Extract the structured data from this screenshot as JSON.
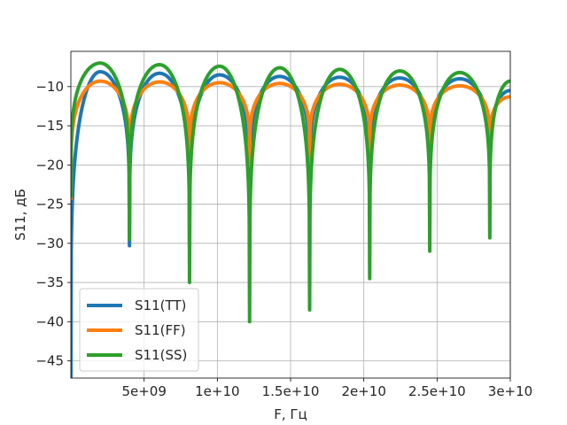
{
  "chart_data": {
    "type": "line",
    "title": "",
    "xlabel": "F, Гц",
    "ylabel": "S11, дБ",
    "xlim": [
      0,
      30000000000
    ],
    "ylim": [
      -47.2,
      -5.5
    ],
    "grid": true,
    "legend_position": "lower-left",
    "x_ticks": [
      5000000000,
      10000000000,
      15000000000,
      20000000000,
      25000000000,
      30000000000
    ],
    "x_tick_labels": [
      "5e+09",
      "1e+10",
      "1.5e+10",
      "2e+10",
      "2.5e+10",
      "3e+10"
    ],
    "y_ticks": [
      -10,
      -15,
      -20,
      -25,
      -30,
      -35,
      -40,
      -45
    ],
    "y_tick_labels": [
      "−10",
      "−15",
      "−20",
      "−25",
      "−30",
      "−35",
      "−40",
      "−45"
    ],
    "series": [
      {
        "name": "S11(TT)",
        "color": "#1f77b4",
        "peaks": [
          {
            "x": 2000000000,
            "y": -8.1
          },
          {
            "x": 6050000000,
            "y": -8.3
          },
          {
            "x": 10150000000,
            "y": -8.5
          },
          {
            "x": 14250000000,
            "y": -8.7
          },
          {
            "x": 18350000000,
            "y": -8.8
          },
          {
            "x": 22450000000,
            "y": -8.9
          },
          {
            "x": 26550000000,
            "y": -9.0
          }
        ],
        "dips": [
          {
            "x": 0,
            "y": -47
          },
          {
            "x": 4000000000,
            "y": -30.3
          },
          {
            "x": 8100000000,
            "y": -30.0
          },
          {
            "x": 12200000000,
            "y": -26.0
          },
          {
            "x": 16300000000,
            "y": -24.5
          },
          {
            "x": 20400000000,
            "y": -24.0
          },
          {
            "x": 24500000000,
            "y": -23.3
          },
          {
            "x": 28600000000,
            "y": -22.5
          }
        ],
        "end_value": -10.5
      },
      {
        "name": "S11(FF)",
        "color": "#ff7f0e",
        "peaks": [
          {
            "x": 2000000000,
            "y": -9.3
          },
          {
            "x": 6050000000,
            "y": -9.4
          },
          {
            "x": 10150000000,
            "y": -9.5
          },
          {
            "x": 14250000000,
            "y": -9.6
          },
          {
            "x": 18350000000,
            "y": -9.7
          },
          {
            "x": 22450000000,
            "y": -9.8
          },
          {
            "x": 26550000000,
            "y": -9.9
          }
        ],
        "dips": [
          {
            "x": 0,
            "y": -24.3
          },
          {
            "x": 4000000000,
            "y": -21.3
          },
          {
            "x": 8100000000,
            "y": -20.5
          },
          {
            "x": 12200000000,
            "y": -20.1
          },
          {
            "x": 16300000000,
            "y": -19.7
          },
          {
            "x": 20400000000,
            "y": -19.4
          },
          {
            "x": 24500000000,
            "y": -19.0
          },
          {
            "x": 28600000000,
            "y": -18.7
          }
        ],
        "end_value": -11.3
      },
      {
        "name": "S11(SS)",
        "color": "#2ca02c",
        "peaks": [
          {
            "x": 2000000000,
            "y": -7.0
          },
          {
            "x": 6050000000,
            "y": -7.2
          },
          {
            "x": 10150000000,
            "y": -7.4
          },
          {
            "x": 14250000000,
            "y": -7.6
          },
          {
            "x": 18350000000,
            "y": -7.8
          },
          {
            "x": 22450000000,
            "y": -8.0
          },
          {
            "x": 26550000000,
            "y": -8.2
          }
        ],
        "dips": [
          {
            "x": 0,
            "y": -24.0
          },
          {
            "x": 4000000000,
            "y": -29.5
          },
          {
            "x": 8100000000,
            "y": -35.0
          },
          {
            "x": 12200000000,
            "y": -40.0
          },
          {
            "x": 16300000000,
            "y": -38.5
          },
          {
            "x": 20400000000,
            "y": -34.5
          },
          {
            "x": 24500000000,
            "y": -31.0
          },
          {
            "x": 28600000000,
            "y": -29.3
          }
        ],
        "end_value": -9.3
      }
    ]
  }
}
